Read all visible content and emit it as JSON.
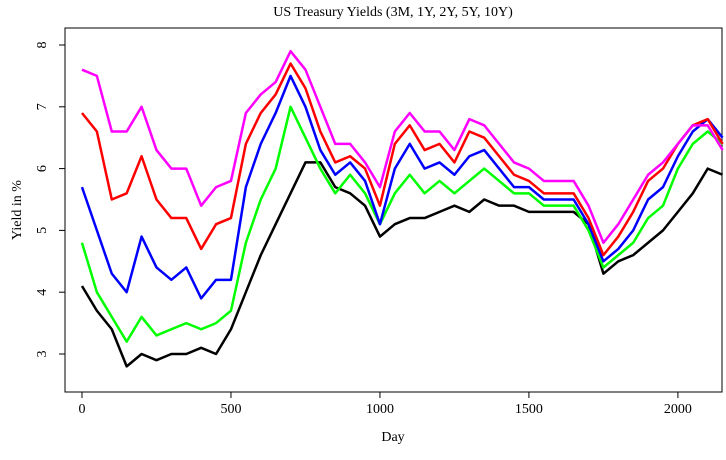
{
  "chart_data": {
    "type": "line",
    "title": "US Treasury Yields (3M, 1Y, 2Y, 5Y, 10Y)",
    "xlabel": "Day",
    "ylabel": "Yield in %",
    "x": [
      0,
      50,
      100,
      150,
      200,
      250,
      300,
      350,
      400,
      450,
      500,
      550,
      600,
      650,
      700,
      750,
      800,
      850,
      900,
      950,
      1000,
      1050,
      1100,
      1150,
      1200,
      1250,
      1300,
      1350,
      1400,
      1450,
      1500,
      1550,
      1600,
      1650,
      1700,
      1750,
      1800,
      1850,
      1900,
      1950,
      2000,
      2050,
      2100,
      2150
    ],
    "series": [
      {
        "color": "#000000",
        "values": [
          4.1,
          3.7,
          3.4,
          2.8,
          3.0,
          2.9,
          3.0,
          3.0,
          3.1,
          3.0,
          3.4,
          4.0,
          4.6,
          5.1,
          5.6,
          6.1,
          6.1,
          5.7,
          5.6,
          5.4,
          4.9,
          5.1,
          5.2,
          5.2,
          5.3,
          5.4,
          5.3,
          5.5,
          5.4,
          5.4,
          5.3,
          5.3,
          5.3,
          5.3,
          5.1,
          4.3,
          4.5,
          4.6,
          4.8,
          5.0,
          5.3,
          5.6,
          6.0,
          5.9
        ]
      },
      {
        "color": "#00ff00",
        "values": [
          4.8,
          4.0,
          3.6,
          3.2,
          3.6,
          3.3,
          3.4,
          3.5,
          3.4,
          3.5,
          3.7,
          4.8,
          5.5,
          6.0,
          7.0,
          6.5,
          6.0,
          5.6,
          5.9,
          5.6,
          5.1,
          5.6,
          5.9,
          5.6,
          5.8,
          5.6,
          5.8,
          6.0,
          5.8,
          5.6,
          5.6,
          5.4,
          5.4,
          5.4,
          5.0,
          4.4,
          4.6,
          4.8,
          5.2,
          5.4,
          6.0,
          6.4,
          6.6,
          6.4
        ]
      },
      {
        "color": "#0000ff",
        "values": [
          5.7,
          5.0,
          4.3,
          4.0,
          4.9,
          4.4,
          4.2,
          4.4,
          3.9,
          4.2,
          4.2,
          5.7,
          6.4,
          6.9,
          7.5,
          7.0,
          6.3,
          5.9,
          6.1,
          5.8,
          5.1,
          6.0,
          6.4,
          6.0,
          6.1,
          5.9,
          6.2,
          6.3,
          6.0,
          5.7,
          5.7,
          5.5,
          5.5,
          5.5,
          5.1,
          4.5,
          4.7,
          5.0,
          5.5,
          5.7,
          6.2,
          6.6,
          6.8,
          6.5
        ]
      },
      {
        "color": "#ff0000",
        "values": [
          6.9,
          6.6,
          5.5,
          5.6,
          6.2,
          5.5,
          5.2,
          5.2,
          4.7,
          5.1,
          5.2,
          6.4,
          6.9,
          7.2,
          7.7,
          7.3,
          6.6,
          6.1,
          6.2,
          6.0,
          5.4,
          6.4,
          6.7,
          6.3,
          6.4,
          6.1,
          6.6,
          6.5,
          6.2,
          5.9,
          5.8,
          5.6,
          5.6,
          5.6,
          5.2,
          4.6,
          4.9,
          5.3,
          5.8,
          6.0,
          6.4,
          6.7,
          6.8,
          6.4
        ]
      },
      {
        "color": "#ff00ff",
        "values": [
          7.6,
          7.5,
          6.6,
          6.6,
          7.0,
          6.3,
          6.0,
          6.0,
          5.4,
          5.7,
          5.8,
          6.9,
          7.2,
          7.4,
          7.9,
          7.6,
          7.0,
          6.4,
          6.4,
          6.1,
          5.7,
          6.6,
          6.9,
          6.6,
          6.6,
          6.3,
          6.8,
          6.7,
          6.4,
          6.1,
          6.0,
          5.8,
          5.8,
          5.8,
          5.4,
          4.8,
          5.1,
          5.5,
          5.9,
          6.1,
          6.4,
          6.7,
          6.7,
          6.3
        ]
      }
    ],
    "xlim": [
      -57,
      2148
    ],
    "xticks": [
      0,
      500,
      1000,
      1500,
      2000
    ],
    "ylim": [
      2.385,
      8.275
    ],
    "yticks": [
      3,
      4,
      5,
      6,
      7,
      8
    ]
  }
}
